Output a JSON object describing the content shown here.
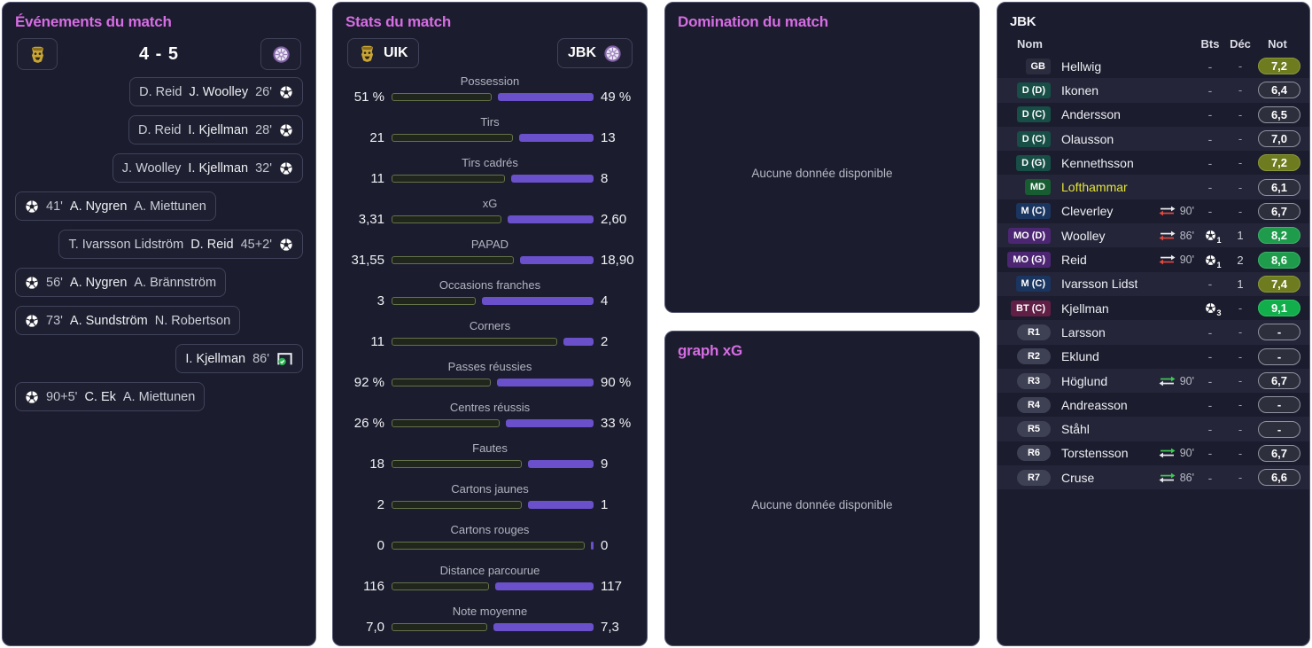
{
  "colors": {
    "panel_bg": "#1b1c2d",
    "accent_title": "#d76de4",
    "bar_away_purple": "#6a51cb",
    "bar_home_border": "#64734a",
    "rating_olive": "#6e7b1e",
    "rating_green": "#1e9c4c",
    "rating_bright_green": "#12ae4b",
    "booked_name_yellow": "#e4e43a",
    "sub_on_green": "#3ecb52",
    "sub_off_red": "#e04840"
  },
  "icons": {
    "home_badge": "uik-crest-icon",
    "away_badge": "jbk-badge-icon",
    "goal": "soccer-ball-icon",
    "goal_confirmed": "goal-net-check-icon",
    "sub_off": "sub-off-arrows-icon",
    "sub_on": "sub-on-arrows-icon"
  },
  "events_panel": {
    "title": "Événements du match",
    "score": "4 - 5",
    "rows": [
      {
        "side": "away",
        "names": [
          "D. Reid",
          "J. Woolley"
        ],
        "minute": "26'",
        "icon": "goal"
      },
      {
        "side": "away",
        "names": [
          "D. Reid",
          "I. Kjellman"
        ],
        "minute": "28'",
        "icon": "goal"
      },
      {
        "side": "away",
        "names": [
          "J. Woolley",
          "I. Kjellman"
        ],
        "minute": "32'",
        "icon": "goal"
      },
      {
        "side": "home",
        "names": [
          "A. Nygren",
          "A. Miettunen"
        ],
        "minute": "41'",
        "icon": "goal"
      },
      {
        "side": "away",
        "names": [
          "T. Ivarsson Lidström",
          "D. Reid"
        ],
        "minute": "45+2'",
        "icon": "goal"
      },
      {
        "side": "home",
        "names": [
          "A. Nygren",
          "A. Brännström"
        ],
        "minute": "56'",
        "icon": "goal"
      },
      {
        "side": "home",
        "names": [
          "A. Sundström",
          "N. Robertson"
        ],
        "minute": "73'",
        "icon": "goal"
      },
      {
        "side": "away",
        "names": [
          "I. Kjellman"
        ],
        "minute": "86'",
        "icon": "goal_confirmed"
      },
      {
        "side": "home",
        "names": [
          "C. Ek",
          "A. Miettunen"
        ],
        "minute": "90+5'",
        "icon": "goal"
      }
    ]
  },
  "stats_panel": {
    "title": "Stats du match",
    "home": {
      "abbr": "UIK"
    },
    "away": {
      "abbr": "JBK"
    },
    "chart_data": {
      "type": "bar",
      "title": "Stats du match",
      "legend": [
        "UIK",
        "JBK"
      ],
      "stats": [
        {
          "label": "Possession",
          "home": "51 %",
          "away": "49 %",
          "home_v": 51,
          "away_v": 49
        },
        {
          "label": "Tirs",
          "home": "21",
          "away": "13",
          "home_v": 21,
          "away_v": 13
        },
        {
          "label": "Tirs cadrés",
          "home": "11",
          "away": "8",
          "home_v": 11,
          "away_v": 8
        },
        {
          "label": "xG",
          "home": "3,31",
          "away": "2,60",
          "home_v": 3.31,
          "away_v": 2.6
        },
        {
          "label": "PAPAD",
          "home": "31,55",
          "away": "18,90",
          "home_v": 31.55,
          "away_v": 18.9
        },
        {
          "label": "Occasions franches",
          "home": "3",
          "away": "4",
          "home_v": 3,
          "away_v": 4
        },
        {
          "label": "Corners",
          "home": "11",
          "away": "2",
          "home_v": 11,
          "away_v": 2
        },
        {
          "label": "Passes réussies",
          "home": "92 %",
          "away": "90 %",
          "home_v": 92,
          "away_v": 90
        },
        {
          "label": "Centres réussis",
          "home": "26 %",
          "away": "33 %",
          "home_v": 26,
          "away_v": 33,
          "frac": 0.55
        },
        {
          "label": "Fautes",
          "home": "18",
          "away": "9",
          "home_v": 18,
          "away_v": 9
        },
        {
          "label": "Cartons jaunes",
          "home": "2",
          "away": "1",
          "home_v": 2,
          "away_v": 1
        },
        {
          "label": "Cartons rouges",
          "home": "0",
          "away": "0",
          "home_v": 0,
          "away_v": 0,
          "frac": 0.985
        },
        {
          "label": "Distance parcourue",
          "home": "116",
          "away": "117",
          "home_v": 116,
          "away_v": 117
        },
        {
          "label": "Note moyenne",
          "home": "7,0",
          "away": "7,3",
          "home_v": 7.0,
          "away_v": 7.3
        }
      ]
    }
  },
  "domination_panel": {
    "title": "Domination du match",
    "empty_message": "Aucune donnée disponible"
  },
  "xg_panel": {
    "title": "graph xG",
    "empty_message": "Aucune donnée disponible"
  },
  "squad_panel": {
    "title": "JBK",
    "columns": {
      "name": "Nom",
      "bts": "Bts",
      "dec": "Déc",
      "not": "Not"
    },
    "rows": [
      {
        "pos": "GB",
        "pos_type": "gk",
        "name": "Hellwig",
        "bts": "-",
        "dec": "-",
        "note": "7,2",
        "note_style": "olive"
      },
      {
        "pos": "D (D)",
        "pos_type": "d",
        "name": "Ikonen",
        "bts": "-",
        "dec": "-",
        "note": "6,4",
        "note_style": "dark"
      },
      {
        "pos": "D (C)",
        "pos_type": "d",
        "name": "Andersson",
        "bts": "-",
        "dec": "-",
        "note": "6,5",
        "note_style": "dark"
      },
      {
        "pos": "D (C)",
        "pos_type": "d",
        "name": "Olausson",
        "bts": "-",
        "dec": "-",
        "note": "7,0",
        "note_style": "dark"
      },
      {
        "pos": "D (G)",
        "pos_type": "d",
        "name": "Kennethsson",
        "bts": "-",
        "dec": "-",
        "note": "7,2",
        "note_style": "olive"
      },
      {
        "pos": "MD",
        "pos_type": "dm",
        "name": "Lofthammar",
        "booked": true,
        "bts": "-",
        "dec": "-",
        "note": "6,1",
        "note_style": "dark"
      },
      {
        "pos": "M (C)",
        "pos_type": "m",
        "name": "Cleverley",
        "sub": {
          "dir": "off",
          "minute": "90'"
        },
        "bts": "-",
        "dec": "-",
        "note": "6,7",
        "note_style": "dark"
      },
      {
        "pos": "MO (D)",
        "pos_type": "am",
        "name": "Woolley",
        "sub": {
          "dir": "off",
          "minute": "86'"
        },
        "goals": 1,
        "dec": "1",
        "note": "8,2",
        "note_style": "green"
      },
      {
        "pos": "MO (G)",
        "pos_type": "am",
        "name": "Reid",
        "sub": {
          "dir": "off",
          "minute": "90'"
        },
        "goals": 1,
        "dec": "2",
        "note": "8,6",
        "note_style": "green"
      },
      {
        "pos": "M (C)",
        "pos_type": "m",
        "name": "Ivarsson Lidst...",
        "bts": "-",
        "dec": "1",
        "note": "7,4",
        "note_style": "olive"
      },
      {
        "pos": "BT (C)",
        "pos_type": "st",
        "name": "Kjellman",
        "goals": 3,
        "dec": "-",
        "note": "9,1",
        "note_style": "bright"
      },
      {
        "pos": "R1",
        "pos_type": "sub",
        "name": "Larsson",
        "bts": "-",
        "dec": "-",
        "note": "-",
        "note_style": "dark"
      },
      {
        "pos": "R2",
        "pos_type": "sub",
        "name": "Eklund",
        "bts": "-",
        "dec": "-",
        "note": "-",
        "note_style": "dark"
      },
      {
        "pos": "R3",
        "pos_type": "sub",
        "name": "Höglund",
        "sub": {
          "dir": "on",
          "minute": "90'"
        },
        "bts": "-",
        "dec": "-",
        "note": "6,7",
        "note_style": "dark"
      },
      {
        "pos": "R4",
        "pos_type": "sub",
        "name": "Andreasson",
        "bts": "-",
        "dec": "-",
        "note": "-",
        "note_style": "dark"
      },
      {
        "pos": "R5",
        "pos_type": "sub",
        "name": "Ståhl",
        "bts": "-",
        "dec": "-",
        "note": "-",
        "note_style": "dark"
      },
      {
        "pos": "R6",
        "pos_type": "sub",
        "name": "Torstensson",
        "sub": {
          "dir": "on",
          "minute": "90'"
        },
        "bts": "-",
        "dec": "-",
        "note": "6,7",
        "note_style": "dark"
      },
      {
        "pos": "R7",
        "pos_type": "sub",
        "name": "Cruse",
        "sub": {
          "dir": "on",
          "minute": "86'"
        },
        "bts": "-",
        "dec": "-",
        "note": "6,6",
        "note_style": "dark"
      }
    ]
  }
}
